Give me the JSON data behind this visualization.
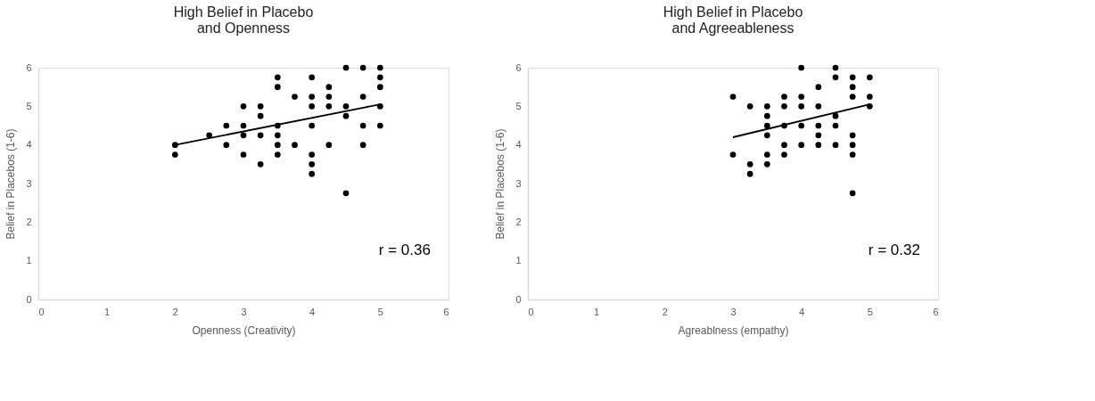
{
  "chart_data": [
    {
      "type": "scatter",
      "title": "High Belief in Placebo\nand Openness",
      "xlabel": "Openness (Creativity)",
      "ylabel": "Belief in Placebos (1-6)",
      "xlim": [
        0,
        6
      ],
      "ylim": [
        0,
        6
      ],
      "xticks": [
        0,
        1,
        2,
        3,
        4,
        5,
        6
      ],
      "yticks": [
        0,
        1,
        2,
        3,
        4,
        5,
        6
      ],
      "grid": false,
      "marker": "circle",
      "annotations": [
        "r = 0.36"
      ],
      "series": [
        {
          "color": "#000000",
          "x": [
            2,
            2,
            2.5,
            2.75,
            2.75,
            3,
            3,
            3,
            3,
            3.25,
            3.25,
            3.25,
            3.25,
            3.5,
            3.5,
            3.5,
            3.5,
            3.5,
            3.5,
            3.75,
            3.75,
            4,
            4,
            4,
            4,
            4,
            4,
            4,
            4.25,
            4.25,
            4.25,
            4.25,
            4.5,
            4.5,
            4.5,
            4.5,
            4.75,
            4.75,
            4.75,
            4.75,
            5,
            5,
            5,
            5,
            5
          ],
          "values": [
            4,
            3.75,
            4.25,
            4.5,
            4,
            5,
            4.5,
            4.25,
            3.75,
            5,
            4.75,
            4.25,
            3.5,
            5.75,
            5.5,
            4.5,
            4.25,
            4,
            3.75,
            5.25,
            4,
            5.75,
            5.25,
            5,
            4.5,
            3.75,
            3.5,
            3.25,
            5.5,
            5.25,
            5,
            4,
            6,
            5,
            4.75,
            2.75,
            6,
            5.25,
            4.5,
            4,
            6,
            5.75,
            5.5,
            5,
            4.5
          ]
        },
        {
          "type": "line",
          "marker": "none",
          "color": "#000000",
          "x": [
            2,
            5
          ],
          "values": [
            4.0,
            5.05
          ]
        }
      ]
    },
    {
      "type": "scatter",
      "title": "High Belief in Placebo\nand Agreeableness",
      "xlabel": "Agreablness (empathy)",
      "ylabel": "Belief in Placebos (1-6)",
      "xlim": [
        0,
        6
      ],
      "ylim": [
        0,
        6
      ],
      "xticks": [
        0,
        1,
        2,
        3,
        4,
        5,
        6
      ],
      "yticks": [
        0,
        1,
        2,
        3,
        4,
        5,
        6
      ],
      "grid": false,
      "marker": "circle",
      "annotations": [
        "r = 0.32"
      ],
      "series": [
        {
          "color": "#000000",
          "x": [
            3,
            3,
            3.25,
            3.25,
            3.25,
            3.5,
            3.5,
            3.5,
            3.5,
            3.5,
            3.5,
            3.75,
            3.75,
            3.75,
            3.75,
            3.75,
            4,
            4,
            4,
            4,
            4,
            4.25,
            4.25,
            4.25,
            4.25,
            4.25,
            4.5,
            4.5,
            4.5,
            4.5,
            4.5,
            4.75,
            4.75,
            4.75,
            4.75,
            4.75,
            4.75,
            4.75,
            5,
            5,
            5
          ],
          "values": [
            5.25,
            3.75,
            5,
            3.5,
            3.25,
            5,
            4.75,
            4.5,
            4.25,
            3.75,
            3.5,
            5.25,
            5,
            4.5,
            4,
            3.75,
            6,
            5.25,
            5,
            4.5,
            4,
            5.5,
            5,
            4.5,
            4.25,
            4,
            6,
            5.75,
            4.75,
            4.5,
            4,
            5.75,
            5.5,
            5.25,
            4.25,
            4,
            3.75,
            2.75,
            5.75,
            5.25,
            5
          ]
        },
        {
          "type": "line",
          "marker": "none",
          "color": "#000000",
          "x": [
            3,
            5
          ],
          "values": [
            4.2,
            5.05
          ]
        }
      ]
    }
  ]
}
